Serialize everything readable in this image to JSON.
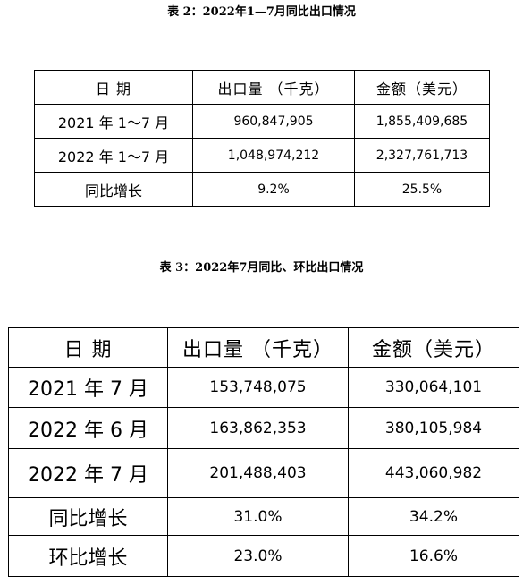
{
  "table2": {
    "caption": "表 2：2022年1—7月同比出口情况",
    "header": [
      "日  期",
      "出口量 （千克）",
      "金额（美元）"
    ],
    "rows": [
      [
        "2021 年 1～7 月",
        "960,847,905",
        "1,855,409,685"
      ],
      [
        "2022 年 1～7 月",
        "1,048,974,212",
        "2,327,761,713"
      ],
      [
        "同比增长",
        "9.2%",
        "25.5%"
      ]
    ]
  },
  "table3": {
    "caption": "表 3：2022年7月同比、环比出口情况",
    "header": [
      "日  期",
      "出口量 （千克）",
      "金额（美元）"
    ],
    "rows": [
      [
        "2021 年 7 月",
        "153,748,075",
        "330,064,101"
      ],
      [
        "2022 年 6 月",
        "163,862,353",
        "380,105,984"
      ],
      [
        "2022 年 7 月",
        "201,488,403",
        "443,060,982"
      ],
      [
        "同比增长",
        "31.0%",
        "34.2%"
      ],
      [
        "环比增长",
        "23.0%",
        "16.6%"
      ]
    ]
  }
}
